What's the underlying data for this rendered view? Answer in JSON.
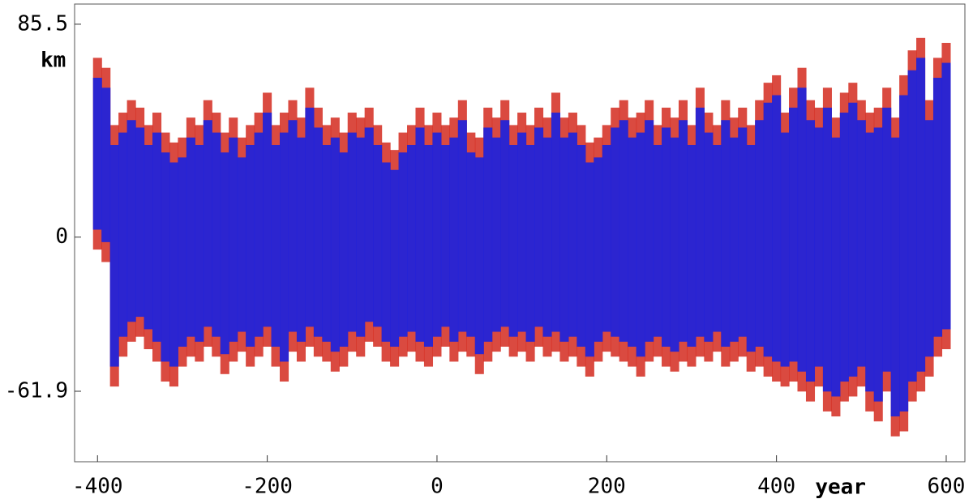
{
  "chart_data": {
    "type": "range-bars",
    "y_label": "km",
    "x_label": "year",
    "xlim": [
      -427,
      622
    ],
    "ylim": [
      -90.2,
      93.6
    ],
    "xticks": [
      -400,
      -200,
      0,
      200,
      400,
      600
    ],
    "yticks": [
      85.5,
      0,
      -61.9
    ],
    "x": [
      -400,
      -390,
      -380,
      -370,
      -360,
      -350,
      -340,
      -330,
      -320,
      -310,
      -300,
      -290,
      -280,
      -270,
      -260,
      -250,
      -240,
      -230,
      -220,
      -210,
      -200,
      -190,
      -180,
      -170,
      -160,
      -150,
      -140,
      -130,
      -120,
      -110,
      -100,
      -90,
      -80,
      -70,
      -60,
      -50,
      -40,
      -30,
      -20,
      -10,
      0,
      10,
      20,
      30,
      40,
      50,
      60,
      70,
      80,
      90,
      100,
      110,
      120,
      130,
      140,
      150,
      160,
      170,
      180,
      190,
      200,
      210,
      220,
      230,
      240,
      250,
      260,
      270,
      280,
      290,
      300,
      310,
      320,
      330,
      340,
      350,
      360,
      370,
      380,
      390,
      400,
      410,
      420,
      430,
      440,
      450,
      460,
      470,
      480,
      490,
      500,
      510,
      520,
      530,
      540,
      550,
      560,
      570,
      580,
      590,
      600
    ],
    "series": [
      {
        "color": "#d42a1e",
        "high": [
          72,
          68,
          45,
          50,
          55,
          52,
          45,
          50,
          42,
          38,
          40,
          48,
          45,
          55,
          50,
          42,
          48,
          40,
          45,
          50,
          58,
          45,
          50,
          55,
          48,
          60,
          52,
          45,
          48,
          42,
          50,
          48,
          52,
          45,
          38,
          35,
          42,
          45,
          52,
          45,
          50,
          45,
          48,
          55,
          42,
          40,
          52,
          48,
          55,
          45,
          50,
          45,
          52,
          48,
          58,
          48,
          50,
          45,
          38,
          40,
          45,
          52,
          55,
          48,
          50,
          55,
          45,
          52,
          48,
          55,
          45,
          60,
          50,
          45,
          55,
          48,
          52,
          45,
          55,
          62,
          65,
          50,
          60,
          68,
          55,
          52,
          60,
          48,
          58,
          62,
          55,
          50,
          52,
          60,
          48,
          65,
          75,
          80,
          55,
          72,
          78
        ],
        "low": [
          -5,
          -10,
          -60,
          -48,
          -42,
          -40,
          -45,
          -50,
          -58,
          -60,
          -52,
          -48,
          -50,
          -44,
          -48,
          -55,
          -50,
          -46,
          -52,
          -48,
          -44,
          -52,
          -58,
          -46,
          -50,
          -44,
          -48,
          -50,
          -54,
          -52,
          -46,
          -48,
          -42,
          -44,
          -50,
          -52,
          -48,
          -46,
          -50,
          -52,
          -48,
          -44,
          -50,
          -46,
          -48,
          -55,
          -50,
          -46,
          -44,
          -48,
          -46,
          -50,
          -44,
          -48,
          -46,
          -50,
          -48,
          -52,
          -56,
          -50,
          -46,
          -48,
          -50,
          -52,
          -56,
          -50,
          -48,
          -52,
          -54,
          -50,
          -52,
          -48,
          -50,
          -46,
          -52,
          -50,
          -48,
          -54,
          -52,
          -56,
          -58,
          -60,
          -58,
          -62,
          -66,
          -60,
          -70,
          -72,
          -66,
          -64,
          -60,
          -70,
          -74,
          -62,
          -80,
          -78,
          -66,
          -62,
          -56,
          -48,
          -45
        ]
      },
      {
        "color": "#2323d8",
        "high": [
          64,
          60,
          37,
          42,
          47,
          44,
          37,
          42,
          34,
          30,
          32,
          40,
          37,
          47,
          42,
          34,
          40,
          32,
          37,
          42,
          50,
          37,
          42,
          47,
          40,
          52,
          44,
          37,
          40,
          34,
          42,
          40,
          44,
          37,
          30,
          27,
          34,
          37,
          44,
          37,
          42,
          37,
          40,
          47,
          34,
          32,
          44,
          40,
          47,
          37,
          42,
          37,
          44,
          40,
          50,
          40,
          42,
          37,
          30,
          32,
          37,
          44,
          47,
          40,
          42,
          47,
          37,
          44,
          40,
          47,
          37,
          52,
          42,
          37,
          47,
          40,
          44,
          37,
          47,
          54,
          57,
          42,
          52,
          60,
          47,
          44,
          52,
          40,
          50,
          54,
          47,
          42,
          44,
          52,
          40,
          57,
          67,
          72,
          47,
          64,
          70
        ],
        "low": [
          3,
          -2,
          -52,
          -40,
          -34,
          -32,
          -37,
          -42,
          -50,
          -52,
          -44,
          -40,
          -42,
          -36,
          -40,
          -47,
          -42,
          -38,
          -44,
          -40,
          -36,
          -44,
          -50,
          -38,
          -42,
          -36,
          -40,
          -42,
          -46,
          -44,
          -38,
          -40,
          -34,
          -36,
          -42,
          -44,
          -40,
          -38,
          -42,
          -44,
          -40,
          -36,
          -42,
          -38,
          -40,
          -47,
          -42,
          -38,
          -36,
          -40,
          -38,
          -42,
          -36,
          -40,
          -38,
          -42,
          -40,
          -44,
          -48,
          -42,
          -38,
          -40,
          -42,
          -44,
          -48,
          -42,
          -40,
          -44,
          -46,
          -42,
          -44,
          -40,
          -42,
          -38,
          -44,
          -42,
          -40,
          -46,
          -44,
          -48,
          -50,
          -52,
          -50,
          -54,
          -58,
          -52,
          -62,
          -64,
          -58,
          -56,
          -52,
          -62,
          -66,
          -54,
          -72,
          -70,
          -58,
          -54,
          -48,
          -40,
          -37
        ]
      }
    ]
  }
}
